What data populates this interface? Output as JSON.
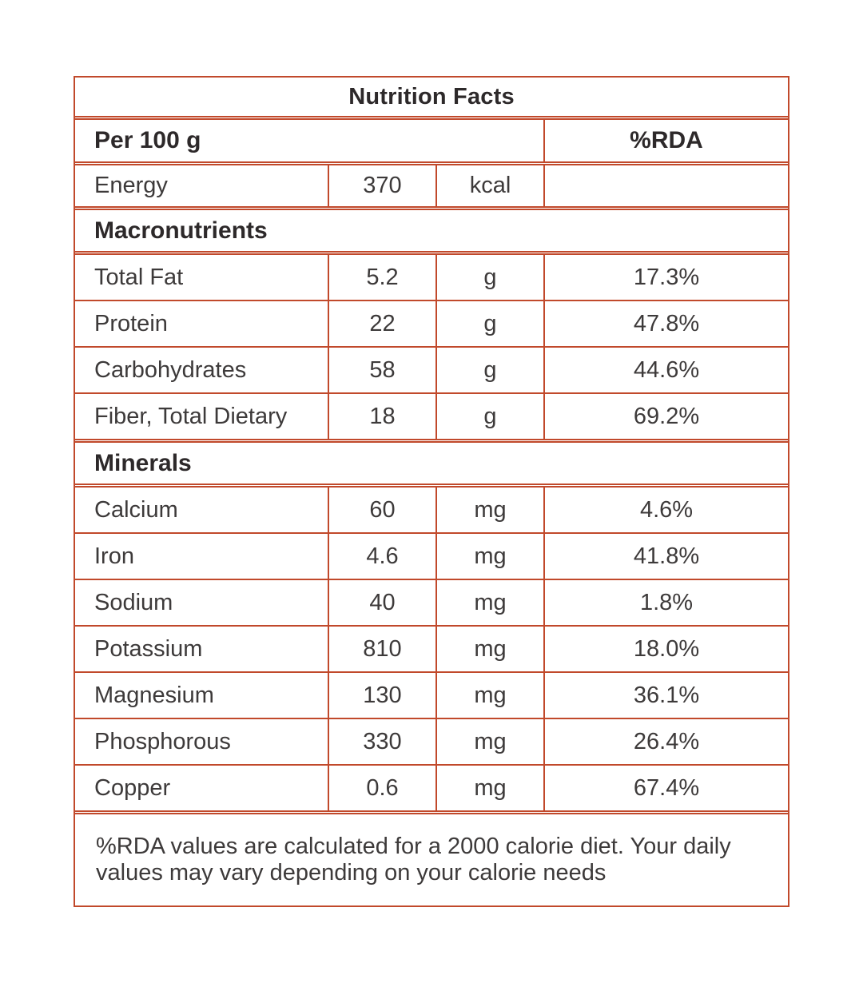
{
  "table": {
    "title": "Nutrition Facts",
    "header": {
      "label": "Per 100 g",
      "rda": "%RDA"
    },
    "energy": {
      "label": "Energy",
      "value": "370",
      "unit": "kcal",
      "rda": ""
    },
    "sections": [
      {
        "heading": "Macronutrients",
        "rows": [
          {
            "label": "Total Fat",
            "value": "5.2",
            "unit": "g",
            "rda": "17.3%"
          },
          {
            "label": "Protein",
            "value": "22",
            "unit": "g",
            "rda": "47.8%"
          },
          {
            "label": "Carbohydrates",
            "value": "58",
            "unit": "g",
            "rda": "44.6%"
          },
          {
            "label": "Fiber, Total Dietary",
            "value": "18",
            "unit": "g",
            "rda": "69.2%"
          }
        ]
      },
      {
        "heading": "Minerals",
        "rows": [
          {
            "label": "Calcium",
            "value": "60",
            "unit": "mg",
            "rda": "4.6%"
          },
          {
            "label": "Iron",
            "value": "4.6",
            "unit": "mg",
            "rda": "41.8%"
          },
          {
            "label": "Sodium",
            "value": "40",
            "unit": "mg",
            "rda": "1.8%"
          },
          {
            "label": "Potassium",
            "value": "810",
            "unit": "mg",
            "rda": "18.0%"
          },
          {
            "label": "Magnesium",
            "value": "130",
            "unit": "mg",
            "rda": "36.1%"
          },
          {
            "label": "Phosphorous",
            "value": "330",
            "unit": "mg",
            "rda": "26.4%"
          },
          {
            "label": "Copper",
            "value": "0.6",
            "unit": "mg",
            "rda": "67.4%"
          }
        ]
      }
    ],
    "footnote": "%RDA values are calculated for a 2000 calorie diet. Your daily values may vary depending on your calorie needs",
    "colors": {
      "border": "#c1492b",
      "heading_text": "#2d292a",
      "body_text": "#3d3a3a"
    }
  }
}
